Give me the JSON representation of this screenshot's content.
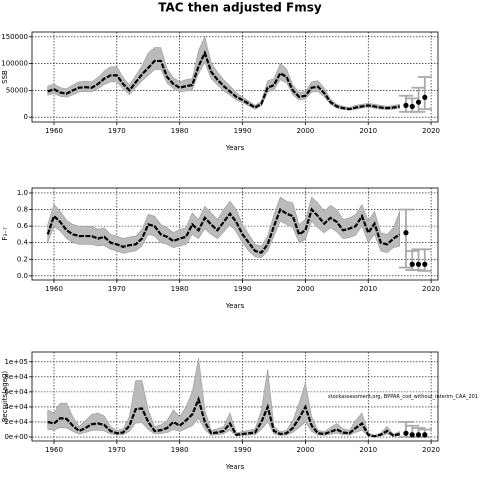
{
  "title": "TAC then adjusted Fmsy",
  "chart_data": [
    {
      "type": "line",
      "ylabel": "SSB",
      "xlabel": "Years",
      "x": [
        1959,
        1960,
        1961,
        1962,
        1963,
        1964,
        1965,
        1966,
        1967,
        1968,
        1969,
        1970,
        1971,
        1972,
        1973,
        1974,
        1975,
        1976,
        1977,
        1978,
        1979,
        1980,
        1981,
        1982,
        1983,
        1984,
        1985,
        1986,
        1987,
        1988,
        1989,
        1990,
        1991,
        1992,
        1993,
        1994,
        1995,
        1996,
        1997,
        1998,
        1999,
        2000,
        2001,
        2002,
        2003,
        2004,
        2005,
        2006,
        2007,
        2008,
        2009,
        2010,
        2011,
        2012,
        2013,
        2014,
        2015
      ],
      "series": [
        {
          "color": "#000000",
          "band_color": "#bbbbbb",
          "values": [
            48000,
            52000,
            46000,
            44000,
            50000,
            55000,
            56000,
            55000,
            62000,
            72000,
            78000,
            78000,
            62000,
            50000,
            65000,
            80000,
            92000,
            105000,
            105000,
            75000,
            62000,
            55000,
            58000,
            60000,
            95000,
            120000,
            85000,
            70000,
            58000,
            48000,
            38000,
            32000,
            25000,
            18000,
            25000,
            55000,
            60000,
            82000,
            75000,
            50000,
            38000,
            40000,
            55000,
            57000,
            45000,
            28000,
            20000,
            17000,
            15000,
            18000,
            20000,
            22000,
            20000,
            18000,
            17000,
            18000,
            20000
          ],
          "lower": [
            41000,
            44000,
            39000,
            37000,
            42000,
            47000,
            48000,
            47000,
            53000,
            61000,
            66000,
            66000,
            53000,
            42000,
            55000,
            68000,
            78000,
            89000,
            89000,
            64000,
            53000,
            47000,
            49000,
            51000,
            81000,
            102000,
            72000,
            60000,
            49000,
            41000,
            32000,
            27000,
            21000,
            15000,
            21000,
            47000,
            51000,
            70000,
            64000,
            42000,
            32000,
            34000,
            47000,
            48000,
            38000,
            24000,
            17000,
            14000,
            13000,
            15000,
            17000,
            19000,
            17000,
            15000,
            14000,
            15000,
            17000
          ],
          "upper": [
            58000,
            62000,
            55000,
            53000,
            60000,
            66000,
            67000,
            66000,
            74000,
            86000,
            94000,
            94000,
            74000,
            60000,
            78000,
            96000,
            120000,
            130000,
            130000,
            90000,
            74000,
            66000,
            70000,
            72000,
            125000,
            150000,
            102000,
            84000,
            70000,
            58000,
            46000,
            38000,
            30000,
            22000,
            30000,
            68000,
            72000,
            100000,
            90000,
            60000,
            46000,
            48000,
            66000,
            68000,
            54000,
            34000,
            24000,
            20000,
            18000,
            22000,
            24000,
            26000,
            24000,
            22000,
            20000,
            22000,
            24000
          ]
        }
      ],
      "projection": {
        "color": "#000000",
        "bar_color": "#aaaaaa",
        "x": [
          2016,
          2017,
          2018,
          2019
        ],
        "values": [
          22000,
          20000,
          28000,
          37000
        ],
        "lower": [
          10000,
          10000,
          10000,
          15000
        ],
        "upper": [
          40000,
          35000,
          55000,
          75000
        ]
      },
      "xlim": [
        1956.5,
        2021.1
      ],
      "xticks": [
        1960,
        1970,
        1980,
        1990,
        2000,
        2010,
        2020
      ],
      "ylim": [
        -9000,
        159000
      ],
      "yticks": [
        0,
        50000,
        100000,
        150000
      ],
      "grid": true
    },
    {
      "type": "line",
      "ylabel": "F₃₋₇",
      "xlabel": "Years",
      "x": [
        1959,
        1960,
        1961,
        1962,
        1963,
        1964,
        1965,
        1966,
        1967,
        1968,
        1969,
        1970,
        1971,
        1972,
        1973,
        1974,
        1975,
        1976,
        1977,
        1978,
        1979,
        1980,
        1981,
        1982,
        1983,
        1984,
        1985,
        1986,
        1987,
        1988,
        1989,
        1990,
        1991,
        1992,
        1993,
        1994,
        1995,
        1996,
        1997,
        1998,
        1999,
        2000,
        2001,
        2002,
        2003,
        2004,
        2005,
        2006,
        2007,
        2008,
        2009,
        2010,
        2011,
        2012,
        2013,
        2014,
        2015
      ],
      "series": [
        {
          "color": "#000000",
          "band_color": "#bbbbbb",
          "values": [
            0.5,
            0.72,
            0.65,
            0.55,
            0.5,
            0.48,
            0.48,
            0.48,
            0.45,
            0.47,
            0.4,
            0.38,
            0.35,
            0.37,
            0.38,
            0.45,
            0.62,
            0.6,
            0.5,
            0.47,
            0.42,
            0.45,
            0.47,
            0.62,
            0.55,
            0.7,
            0.62,
            0.55,
            0.65,
            0.75,
            0.65,
            0.5,
            0.4,
            0.3,
            0.28,
            0.38,
            0.6,
            0.8,
            0.75,
            0.72,
            0.5,
            0.55,
            0.8,
            0.72,
            0.63,
            0.7,
            0.65,
            0.55,
            0.57,
            0.6,
            0.72,
            0.52,
            0.63,
            0.4,
            0.38,
            0.45,
            0.5
          ],
          "lower": [
            0.4,
            0.6,
            0.54,
            0.45,
            0.4,
            0.38,
            0.38,
            0.38,
            0.36,
            0.37,
            0.32,
            0.3,
            0.27,
            0.29,
            0.3,
            0.36,
            0.5,
            0.48,
            0.4,
            0.38,
            0.34,
            0.36,
            0.38,
            0.5,
            0.45,
            0.57,
            0.5,
            0.45,
            0.53,
            0.62,
            0.53,
            0.4,
            0.3,
            0.23,
            0.22,
            0.3,
            0.48,
            0.66,
            0.62,
            0.58,
            0.4,
            0.44,
            0.66,
            0.58,
            0.52,
            0.58,
            0.53,
            0.45,
            0.46,
            0.49,
            0.6,
            0.4,
            0.5,
            0.3,
            0.28,
            0.34,
            0.36
          ],
          "upper": [
            0.62,
            0.86,
            0.78,
            0.67,
            0.62,
            0.6,
            0.6,
            0.6,
            0.56,
            0.58,
            0.5,
            0.48,
            0.45,
            0.47,
            0.48,
            0.56,
            0.74,
            0.72,
            0.62,
            0.58,
            0.52,
            0.56,
            0.58,
            0.76,
            0.68,
            0.84,
            0.76,
            0.68,
            0.8,
            0.9,
            0.8,
            0.62,
            0.5,
            0.38,
            0.36,
            0.48,
            0.74,
            0.95,
            0.9,
            0.88,
            0.62,
            0.68,
            0.95,
            0.88,
            0.78,
            0.85,
            0.8,
            0.68,
            0.7,
            0.74,
            0.86,
            0.66,
            0.78,
            0.52,
            0.5,
            0.58,
            0.78
          ]
        }
      ],
      "projection": {
        "color": "#000000",
        "bar_color": "#aaaaaa",
        "x": [
          2016,
          2017,
          2018,
          2019
        ],
        "values": [
          0.52,
          0.14,
          0.14,
          0.14
        ],
        "lower": [
          0.1,
          0.07,
          0.07,
          0.06
        ],
        "upper": [
          0.8,
          0.3,
          0.32,
          0.32
        ]
      },
      "xlim": [
        1956.5,
        2021.1
      ],
      "xticks": [
        1960,
        1970,
        1980,
        1990,
        2000,
        2010,
        2020
      ],
      "ylim": [
        -0.05,
        1.06
      ],
      "yticks": [
        {
          "value": 0,
          "label": "0.0"
        },
        0.2,
        0.4,
        0.6,
        0.8,
        {
          "value": 1,
          "label": "1.0"
        }
      ],
      "grid": true
    },
    {
      "type": "line",
      "ylabel": "Recruits(age0)",
      "xlabel": "Years",
      "annotation": "stockassessment.org, BPPAR_cod_without_interim_CAA_201",
      "x": [
        1959,
        1960,
        1961,
        1962,
        1963,
        1964,
        1965,
        1966,
        1967,
        1968,
        1969,
        1970,
        1971,
        1972,
        1973,
        1974,
        1975,
        1976,
        1977,
        1978,
        1979,
        1980,
        1981,
        1982,
        1983,
        1984,
        1985,
        1986,
        1987,
        1988,
        1989,
        1990,
        1991,
        1992,
        1993,
        1994,
        1995,
        1996,
        1997,
        1998,
        1999,
        2000,
        2001,
        2002,
        2003,
        2004,
        2005,
        2006,
        2007,
        2008,
        2009,
        2010,
        2011,
        2012,
        2013,
        2014,
        2015
      ],
      "series": [
        {
          "color": "#000000",
          "band_color": "#bbbbbb",
          "values": [
            20000,
            18000,
            25000,
            24000,
            15000,
            8000,
            12000,
            17000,
            18000,
            16000,
            8000,
            5000,
            6000,
            15000,
            37000,
            38000,
            20000,
            8000,
            9000,
            12000,
            20000,
            15000,
            22000,
            30000,
            50000,
            20000,
            5000,
            6000,
            8000,
            18000,
            3000,
            4000,
            5000,
            6000,
            20000,
            40000,
            8000,
            4000,
            5000,
            12000,
            25000,
            40000,
            15000,
            5000,
            4000,
            7000,
            10000,
            6000,
            5000,
            12000,
            18000,
            3000,
            1000,
            3000,
            8000,
            2000,
            4000
          ],
          "lower": [
            10000,
            9000,
            12500,
            12000,
            7500,
            4000,
            6000,
            8500,
            9000,
            8000,
            4000,
            2500,
            3000,
            7500,
            18500,
            19000,
            10000,
            4000,
            4500,
            6000,
            10000,
            7500,
            11000,
            15000,
            25000,
            10000,
            2500,
            3000,
            4000,
            9000,
            1500,
            2000,
            2500,
            3000,
            10000,
            20000,
            4000,
            2000,
            2500,
            6000,
            12500,
            20000,
            7500,
            2500,
            2000,
            3500,
            5000,
            3000,
            2500,
            6000,
            9000,
            1500,
            500,
            1500,
            4000,
            1000,
            2000
          ],
          "upper": [
            36000,
            32000,
            45000,
            45000,
            27000,
            14000,
            22000,
            30000,
            32000,
            28000,
            14000,
            9000,
            11000,
            27000,
            75000,
            75000,
            36000,
            14000,
            16000,
            22000,
            36000,
            27000,
            40000,
            60000,
            105000,
            36000,
            9000,
            11000,
            14000,
            32000,
            5400,
            7200,
            9000,
            11000,
            36000,
            90000,
            14000,
            7200,
            9000,
            22000,
            45000,
            72000,
            27000,
            9000,
            7200,
            12600,
            18000,
            11000,
            9000,
            22000,
            32000,
            5400,
            1800,
            5400,
            14000,
            3600,
            7200
          ]
        }
      ],
      "projection": {
        "color": "#000000",
        "bar_color": "#aaaaaa",
        "x": [
          2016,
          2017,
          2018,
          2019
        ],
        "values": [
          5000,
          3000,
          3000,
          3000
        ],
        "lower": [
          0,
          0,
          0,
          0
        ],
        "upper": [
          20000,
          15000,
          12000,
          10000
        ]
      },
      "xlim": [
        1956.5,
        2021.1
      ],
      "xticks": [
        1960,
        1970,
        1980,
        1990,
        2000,
        2010,
        2020
      ],
      "ylim": [
        -5300,
        113000
      ],
      "yticks": [
        {
          "value": 0,
          "label": "0e+00"
        },
        {
          "value": 20000,
          "label": "2e+04"
        },
        {
          "value": 40000,
          "label": "4e+04"
        },
        {
          "value": 60000,
          "label": "6e+04"
        },
        {
          "value": 80000,
          "label": "8e+04"
        },
        {
          "value": 100000,
          "label": "1e+05"
        }
      ],
      "grid": true
    }
  ]
}
